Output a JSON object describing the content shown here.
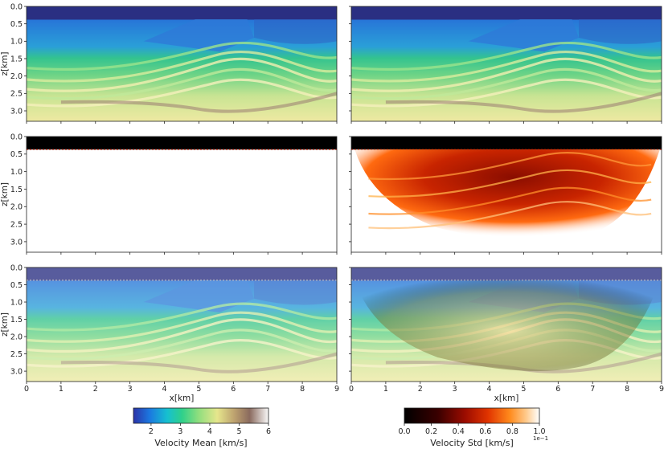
{
  "chart_data": [
    {
      "type": "heatmap",
      "field": "velocity_mean",
      "panel": "true-velocity",
      "xlim": [
        0,
        9
      ],
      "ylim": [
        0,
        3.3
      ],
      "xticks": [],
      "yticks": [
        "0.0",
        "0.5",
        "1.0",
        "1.5",
        "2.0",
        "2.5",
        "3.0"
      ],
      "xlabel": "",
      "ylabel": "z[km]"
    },
    {
      "type": "heatmap",
      "field": "velocity_mean",
      "panel": "mean-inverted-velocity",
      "xlim": [
        0,
        9
      ],
      "ylim": [
        0,
        3.3
      ],
      "xticks": [],
      "yticks": [],
      "xlabel": "",
      "ylabel": ""
    },
    {
      "type": "heatmap",
      "field": "velocity_std",
      "panel": "prior-std",
      "xlim": [
        0,
        9
      ],
      "ylim": [
        0,
        3.3
      ],
      "xticks": [],
      "yticks": [
        "0.0",
        "0.5",
        "1.0",
        "1.5",
        "2.0",
        "2.5",
        "3.0"
      ],
      "xlabel": "",
      "ylabel": "z[km]"
    },
    {
      "type": "heatmap",
      "field": "velocity_std",
      "panel": "posterior-std",
      "xlim": [
        0,
        9
      ],
      "ylim": [
        0,
        3.3
      ],
      "xticks": [],
      "yticks": [],
      "xlabel": "",
      "ylabel": ""
    },
    {
      "type": "heatmap",
      "field": "velocity_mean_with_std_overlay",
      "panel": "overlay-left",
      "xlim": [
        0,
        9
      ],
      "ylim": [
        0,
        3.3
      ],
      "xticks": [
        "0",
        "1",
        "2",
        "3",
        "4",
        "5",
        "6",
        "7",
        "8",
        "9"
      ],
      "yticks": [
        "0.0",
        "0.5",
        "1.0",
        "1.5",
        "2.0",
        "2.5",
        "3.0"
      ],
      "xlabel": "x[km]",
      "ylabel": "z[km]"
    },
    {
      "type": "heatmap",
      "field": "velocity_mean_with_std_overlay",
      "panel": "overlay-right",
      "xlim": [
        0,
        9
      ],
      "ylim": [
        0,
        3.3
      ],
      "xticks": [
        "0",
        "1",
        "2",
        "3",
        "4",
        "5",
        "6",
        "7",
        "8",
        "9"
      ],
      "yticks": [],
      "xlabel": "x[km]",
      "ylabel": ""
    }
  ],
  "colorbars": {
    "mean": {
      "label": "Velocity Mean [km/s]",
      "ticks": [
        "2",
        "3",
        "4",
        "5",
        "6"
      ],
      "range": [
        1.4,
        6
      ],
      "colormap": "terrain"
    },
    "std": {
      "label": "Velocity Std [km/s]",
      "ticks": [
        "0.0",
        "0.2",
        "0.4",
        "0.6",
        "0.8",
        "1.0"
      ],
      "multiplier": "1e−1",
      "range": [
        0,
        1
      ],
      "colormap": "gist_heat"
    }
  },
  "colors": {
    "water": "#2a2f82",
    "shallow": "#2f78d8",
    "mid": "#36c39a",
    "deep_green": "#7ed886",
    "pale": "#e9e79c",
    "brown": "#9b7c72",
    "std_low": "#000000",
    "std_mid": "#b71c00",
    "std_high": "#ffd9a6"
  }
}
